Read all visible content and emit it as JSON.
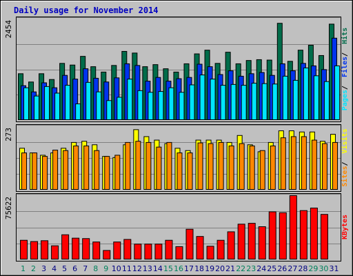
{
  "chart_data": {
    "type": "bar",
    "title": "Daily usage for November 2014",
    "categories": [
      "1",
      "2",
      "3",
      "4",
      "5",
      "6",
      "7",
      "8",
      "9",
      "10",
      "11",
      "12",
      "13",
      "14",
      "15",
      "16",
      "17",
      "18",
      "19",
      "20",
      "21",
      "22",
      "23",
      "24",
      "25",
      "26",
      "27",
      "28",
      "29",
      "30",
      "31"
    ],
    "weekend_days": [
      "1",
      "2",
      "8",
      "9",
      "15",
      "16",
      "22",
      "23",
      "29",
      "30"
    ],
    "colors": {
      "background": "#C0C0C0",
      "title": "#0000C0",
      "hits": "#006C4A",
      "files": "#0033EE",
      "pages": "#00E5FF",
      "visits": "#FFFF00",
      "sites": "#FF8800",
      "kbytes": "#FF0000",
      "weekend_label": "#00805C",
      "weekday_label": "#000080"
    },
    "panels": [
      {
        "id": "hits-files-pages",
        "ymax_label": "2454",
        "ylim": [
          0,
          2454
        ],
        "legend": [
          "Pages",
          "Files",
          "Hits"
        ],
        "series": [
          {
            "name": "Hits",
            "values": [
              1130,
              930,
              1130,
              990,
              1380,
              1340,
              1550,
              1300,
              1170,
              1330,
              1670,
              1630,
              1300,
              1350,
              1250,
              1170,
              1370,
              1610,
              1700,
              1380,
              1650,
              1370,
              1450,
              1470,
              1460,
              2350,
              1430,
              1700,
              1820,
              1570,
              2330
            ]
          },
          {
            "name": "Files",
            "values": [
              840,
              690,
              910,
              790,
              1090,
              1000,
              1250,
              1020,
              930,
              1030,
              1370,
              1330,
              950,
              1040,
              950,
              1010,
              1040,
              1360,
              1300,
              1110,
              1200,
              1070,
              1130,
              1160,
              1090,
              1370,
              1200,
              1380,
              1320,
              1230,
              1990
            ]
          },
          {
            "name": "Pages",
            "values": [
              790,
              590,
              820,
              660,
              850,
              400,
              920,
              690,
              480,
              560,
              1000,
              720,
              680,
              700,
              790,
              680,
              860,
              1100,
              1000,
              850,
              870,
              850,
              900,
              890,
              880,
              1070,
              970,
              1270,
              1080,
              940,
              1320
            ]
          }
        ]
      },
      {
        "id": "visits-sites",
        "ymax_label": "273",
        "ylim": [
          0,
          273
        ],
        "legend": [
          "Sites",
          "Visits"
        ],
        "series": [
          {
            "name": "Visits",
            "values": [
              180,
              160,
              150,
              160,
              180,
              205,
              210,
              195,
              145,
              140,
              195,
              260,
              230,
              215,
              200,
              180,
              170,
              215,
              215,
              215,
              205,
              235,
              195,
              165,
              205,
              255,
              255,
              250,
              250,
              210,
              240
            ]
          },
          {
            "name": "Sites",
            "values": [
              160,
              160,
              145,
              172,
              170,
              190,
              190,
              170,
              145,
              150,
              205,
              210,
              205,
              185,
              205,
              160,
              160,
              203,
              200,
              205,
              190,
              200,
              190,
              170,
              190,
              225,
              230,
              230,
              215,
              200,
              205
            ]
          }
        ]
      },
      {
        "id": "kbytes",
        "ymax_label": "75622",
        "ylim": [
          0,
          75622
        ],
        "legend": [
          "KBytes"
        ],
        "series": [
          {
            "name": "KBytes",
            "values": [
              23000,
              21500,
              22500,
              16500,
              29500,
              25500,
              25000,
              21000,
              11000,
              21000,
              24000,
              18500,
              18500,
              18500,
              23000,
              15500,
              36000,
              27500,
              16000,
              23000,
              33000,
              42000,
              43000,
              39000,
              56500,
              55500,
              75622,
              58000,
              61000,
              53500,
              0
            ]
          }
        ]
      }
    ]
  }
}
